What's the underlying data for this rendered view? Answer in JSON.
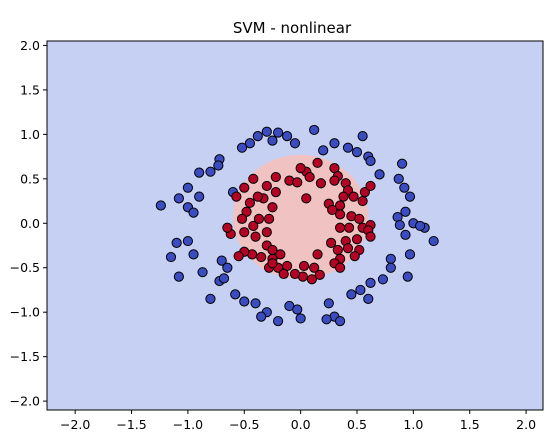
{
  "chart_data": {
    "type": "scatter",
    "title": "SVM - nonlinear",
    "xlabel": "",
    "ylabel": "",
    "xlim": [
      -2.25,
      2.15
    ],
    "ylim": [
      -2.1,
      2.05
    ],
    "xticks": [
      -2.0,
      -1.5,
      -1.0,
      -0.5,
      0.0,
      0.5,
      1.0,
      1.5,
      2.0
    ],
    "yticks": [
      -2.0,
      -1.5,
      -1.0,
      -0.5,
      0.0,
      0.5,
      1.0,
      1.5,
      2.0
    ],
    "grid": false,
    "background_color": "#c6d0f2",
    "decision_region": {
      "shape": "ellipse",
      "center": [
        0.0,
        0.07
      ],
      "radii": [
        0.6,
        0.7
      ],
      "color": "#f0c3c2"
    },
    "series": [
      {
        "class": "outer",
        "color": "#3b4cc0",
        "points": [
          [
            -0.3,
            1.03
          ],
          [
            -0.2,
            1.02
          ],
          [
            -0.12,
            0.98
          ],
          [
            -0.38,
            0.98
          ],
          [
            -0.25,
            0.93
          ],
          [
            0.12,
            1.05
          ],
          [
            -0.05,
            0.9
          ],
          [
            -0.45,
            0.9
          ],
          [
            -0.52,
            0.85
          ],
          [
            0.55,
            0.98
          ],
          [
            0.3,
            0.9
          ],
          [
            0.42,
            0.85
          ],
          [
            0.2,
            0.82
          ],
          [
            0.5,
            0.8
          ],
          [
            0.6,
            0.75
          ],
          [
            0.62,
            0.7
          ],
          [
            0.7,
            0.55
          ],
          [
            0.9,
            0.67
          ],
          [
            -0.72,
            0.72
          ],
          [
            -0.73,
            0.65
          ],
          [
            -0.8,
            0.58
          ],
          [
            -0.9,
            0.57
          ],
          [
            -0.6,
            0.35
          ],
          [
            0.92,
            0.4
          ],
          [
            0.87,
            0.5
          ],
          [
            -0.9,
            0.3
          ],
          [
            -1.0,
            0.4
          ],
          [
            -1.08,
            0.28
          ],
          [
            -1.24,
            0.2
          ],
          [
            -1.0,
            0.18
          ],
          [
            0.97,
            0.3
          ],
          [
            -0.95,
            0.12
          ],
          [
            0.93,
            0.13
          ],
          [
            0.86,
            0.07
          ],
          [
            -1.1,
            -0.22
          ],
          [
            1.0,
            0.0
          ],
          [
            1.1,
            -0.05
          ],
          [
            0.88,
            -0.02
          ],
          [
            1.06,
            -0.03
          ],
          [
            0.93,
            -0.13
          ],
          [
            1.18,
            -0.2
          ],
          [
            0.97,
            -0.35
          ],
          [
            -1.0,
            -0.2
          ],
          [
            -1.15,
            -0.38
          ],
          [
            -0.95,
            -0.35
          ],
          [
            -1.08,
            -0.6
          ],
          [
            -0.87,
            -0.55
          ],
          [
            0.8,
            -0.4
          ],
          [
            0.95,
            -0.6
          ],
          [
            -0.7,
            -0.42
          ],
          [
            -0.65,
            -0.5
          ],
          [
            0.8,
            -0.5
          ],
          [
            -0.72,
            -0.65
          ],
          [
            0.73,
            -0.63
          ],
          [
            0.62,
            -0.67
          ],
          [
            -0.68,
            -0.62
          ],
          [
            -0.8,
            -0.85
          ],
          [
            -0.58,
            -0.8
          ],
          [
            -0.5,
            -0.88
          ],
          [
            0.53,
            -0.75
          ],
          [
            0.45,
            -0.8
          ],
          [
            -0.4,
            -0.9
          ],
          [
            0.6,
            -0.85
          ],
          [
            -0.3,
            -1.0
          ],
          [
            0.25,
            -0.9
          ],
          [
            -0.1,
            -0.93
          ],
          [
            0.3,
            -1.05
          ],
          [
            -0.2,
            -1.1
          ],
          [
            0.0,
            -1.07
          ],
          [
            0.23,
            -1.08
          ],
          [
            0.35,
            -1.1
          ],
          [
            -0.35,
            -1.05
          ],
          [
            -0.03,
            -0.97
          ]
        ]
      },
      {
        "class": "inner",
        "color": "#b40426",
        "points": [
          [
            0.05,
            0.58
          ],
          [
            0.15,
            0.68
          ],
          [
            0.3,
            0.62
          ],
          [
            0.0,
            0.62
          ],
          [
            0.33,
            0.53
          ],
          [
            0.08,
            0.52
          ],
          [
            -0.1,
            0.48
          ],
          [
            -0.22,
            0.52
          ],
          [
            -0.42,
            0.5
          ],
          [
            -0.5,
            0.4
          ],
          [
            -0.3,
            0.42
          ],
          [
            -0.22,
            0.35
          ],
          [
            -0.03,
            0.46
          ],
          [
            0.18,
            0.45
          ],
          [
            0.3,
            0.48
          ],
          [
            0.4,
            0.45
          ],
          [
            0.42,
            0.37
          ],
          [
            0.47,
            0.3
          ],
          [
            0.57,
            0.35
          ],
          [
            0.62,
            0.42
          ],
          [
            0.55,
            0.25
          ],
          [
            0.38,
            0.3
          ],
          [
            -0.33,
            0.28
          ],
          [
            -0.38,
            0.3
          ],
          [
            -0.45,
            0.23
          ],
          [
            -0.57,
            0.3
          ],
          [
            -0.25,
            0.18
          ],
          [
            0.05,
            0.28
          ],
          [
            0.25,
            0.22
          ],
          [
            0.35,
            0.2
          ],
          [
            -0.48,
            0.13
          ],
          [
            -0.52,
            0.05
          ],
          [
            -0.42,
            -0.03
          ],
          [
            -0.37,
            0.05
          ],
          [
            -0.28,
            0.05
          ],
          [
            -0.3,
            -0.1
          ],
          [
            -0.4,
            -0.15
          ],
          [
            -0.5,
            -0.1
          ],
          [
            -0.62,
            -0.12
          ],
          [
            -0.65,
            -0.05
          ],
          [
            0.35,
            0.1
          ],
          [
            0.28,
            0.15
          ],
          [
            0.45,
            0.08
          ],
          [
            0.52,
            0.05
          ],
          [
            0.55,
            -0.05
          ],
          [
            0.62,
            -0.02
          ],
          [
            0.6,
            -0.08
          ],
          [
            0.43,
            -0.05
          ],
          [
            0.35,
            -0.05
          ],
          [
            0.4,
            -0.2
          ],
          [
            0.5,
            -0.18
          ],
          [
            0.62,
            -0.15
          ],
          [
            0.27,
            -0.22
          ],
          [
            0.33,
            -0.3
          ],
          [
            0.42,
            -0.28
          ],
          [
            0.52,
            -0.3
          ],
          [
            0.48,
            -0.37
          ],
          [
            0.35,
            -0.4
          ],
          [
            0.15,
            -0.35
          ],
          [
            -0.3,
            -0.25
          ],
          [
            -0.25,
            -0.3
          ],
          [
            -0.18,
            -0.35
          ],
          [
            -0.25,
            -0.4
          ],
          [
            -0.35,
            -0.38
          ],
          [
            -0.43,
            -0.35
          ],
          [
            -0.5,
            -0.32
          ],
          [
            -0.55,
            -0.37
          ],
          [
            -0.28,
            -0.5
          ],
          [
            -0.12,
            -0.48
          ],
          [
            -0.2,
            -0.5
          ],
          [
            0.03,
            -0.48
          ],
          [
            0.12,
            -0.5
          ],
          [
            0.17,
            -0.58
          ],
          [
            0.1,
            -0.63
          ],
          [
            0.02,
            -0.6
          ],
          [
            -0.05,
            -0.57
          ],
          [
            -0.15,
            -0.57
          ],
          [
            -0.25,
            -0.45
          ],
          [
            0.3,
            -0.45
          ],
          [
            0.35,
            -0.5
          ]
        ]
      }
    ]
  }
}
